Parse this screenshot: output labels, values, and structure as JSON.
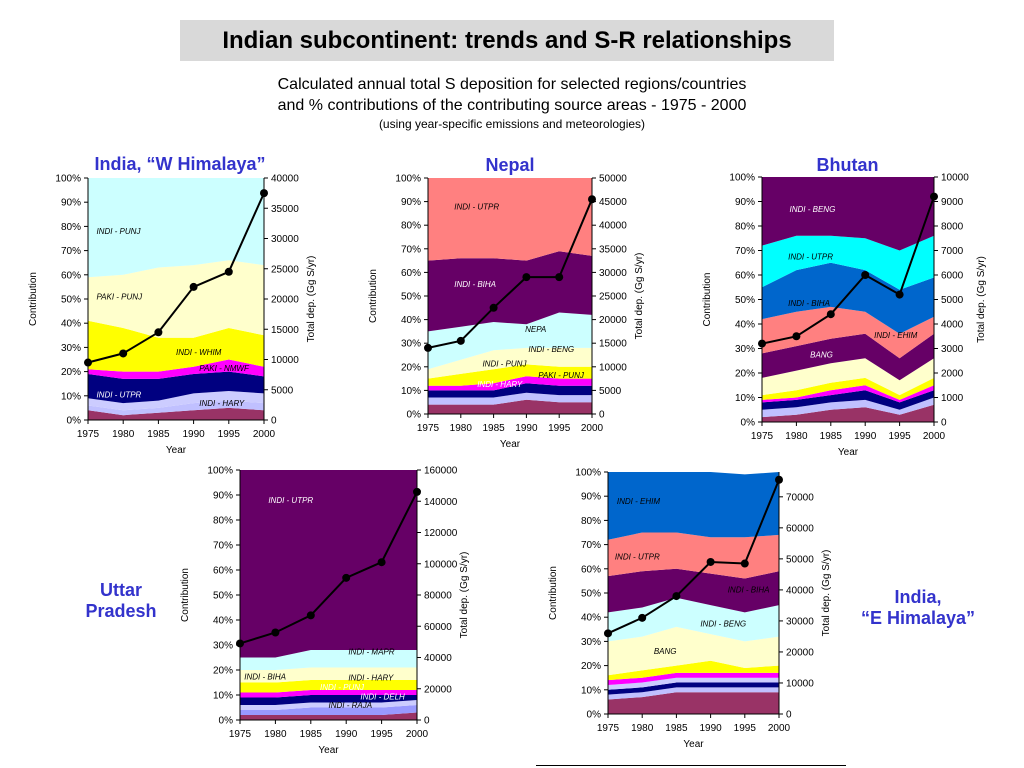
{
  "header": {
    "title": "Indian subcontinent: trends and S-R relationships",
    "subtitle_line1": "Calculated annual total S deposition for selected regions/countries",
    "subtitle_line2": "and % contributions of the contributing source areas - 1975 - 2000",
    "subtitle_line3": "(using year-specific emissions and meteorologies)"
  },
  "colors": {
    "region_title": "#3333cc",
    "line": "#000000"
  },
  "chart_data": [
    {
      "type": "area",
      "region_label": "India, “W Himalaya”",
      "xlabel": "Year",
      "ylabel_left": "Contribution",
      "ylabel_right": "Total dep. (Gg S/yr)",
      "x": [
        1975,
        1980,
        1985,
        1990,
        1995,
        2000
      ],
      "left_ticks": [
        "0%",
        "10%",
        "20%",
        "30%",
        "40%",
        "50%",
        "60%",
        "70%",
        "80%",
        "90%",
        "100%"
      ],
      "right_ticks": [
        "0",
        "5000",
        "10000",
        "15000",
        "20000",
        "25000",
        "30000",
        "35000",
        "40000"
      ],
      "right_max": 40000,
      "stacks": [
        {
          "color": "#993366",
          "values": [
            4,
            2,
            3,
            4,
            5,
            4
          ]
        },
        {
          "color": "#c0c0ff",
          "values": [
            2,
            2,
            2,
            3,
            3,
            3
          ]
        },
        {
          "color": "#ccccff",
          "values": [
            3,
            3,
            3,
            4,
            4,
            4
          ]
        },
        {
          "color": "#000080",
          "values": [
            10,
            10,
            9,
            8,
            8,
            7
          ]
        },
        {
          "color": "#ff00ff",
          "values": [
            2,
            3,
            3,
            3,
            5,
            4
          ]
        },
        {
          "color": "#ffff00",
          "values": [
            20,
            18,
            14,
            12,
            13,
            13
          ]
        },
        {
          "color": "#ffffcc",
          "values": [
            18,
            22,
            29,
            30,
            28,
            29
          ]
        },
        {
          "color": "#ccffff",
          "values": [
            41,
            40,
            37,
            36,
            34,
            36
          ]
        }
      ],
      "total": [
        9500,
        11000,
        14500,
        22000,
        24500,
        37500
      ],
      "area_labels": [
        {
          "text": "INDI - PUNJ",
          "x": 1976.2,
          "y": 78,
          "color": "#000000"
        },
        {
          "text": "PAKI - PUNJ",
          "x": 1976.2,
          "y": 51,
          "color": "#000000"
        },
        {
          "text": "INDI - WHIM",
          "x": 1987.5,
          "y": 28,
          "color": "#000000"
        },
        {
          "text": "PAKI - NMWF",
          "x": 1990.8,
          "y": 21.5,
          "color": "#000000"
        },
        {
          "text": "INDI - UTPR",
          "x": 1976.2,
          "y": 10.5,
          "color": "#ffffff"
        },
        {
          "text": "INDI - HARY",
          "x": 1990.8,
          "y": 7,
          "color": "#000000"
        }
      ]
    },
    {
      "type": "area",
      "region_label": "Nepal",
      "xlabel": "Year",
      "ylabel_left": "Contribution",
      "ylabel_right": "Total dep. (Gg S/yr)",
      "x": [
        1975,
        1980,
        1985,
        1990,
        1995,
        2000
      ],
      "left_ticks": [
        "0%",
        "10%",
        "20%",
        "30%",
        "40%",
        "50%",
        "60%",
        "70%",
        "80%",
        "90%",
        "100%"
      ],
      "right_ticks": [
        "0",
        "5000",
        "10000",
        "15000",
        "20000",
        "25000",
        "30000",
        "35000",
        "40000",
        "45000",
        "50000"
      ],
      "right_max": 50000,
      "stacks": [
        {
          "color": "#993366",
          "values": [
            4,
            4,
            4,
            6,
            5,
            5
          ]
        },
        {
          "color": "#c0c0ff",
          "values": [
            3,
            3,
            3,
            3,
            3,
            3
          ]
        },
        {
          "color": "#000080",
          "values": [
            3,
            3,
            3,
            4,
            4,
            4
          ]
        },
        {
          "color": "#ff00ff",
          "values": [
            2,
            2,
            3,
            3,
            3,
            3
          ]
        },
        {
          "color": "#ffff00",
          "values": [
            3,
            5,
            6,
            5,
            5,
            5
          ]
        },
        {
          "color": "#ffffcc",
          "values": [
            4,
            6,
            8,
            7,
            8,
            8
          ]
        },
        {
          "color": "#ccffff",
          "values": [
            16,
            14,
            12,
            10,
            15,
            14
          ]
        },
        {
          "color": "#660066",
          "values": [
            30,
            29,
            27,
            27,
            26,
            25
          ]
        },
        {
          "color": "#ff8080",
          "values": [
            35,
            34,
            34,
            35,
            31,
            33
          ]
        }
      ],
      "total": [
        14000,
        15500,
        22500,
        29000,
        29000,
        45500
      ],
      "area_labels": [
        {
          "text": "INDI - UTPR",
          "x": 1979,
          "y": 88,
          "color": "#000000"
        },
        {
          "text": "INDI - BIHA",
          "x": 1979,
          "y": 55,
          "color": "#ffffff"
        },
        {
          "text": "NEPA",
          "x": 1989.8,
          "y": 36,
          "color": "#000000"
        },
        {
          "text": "INDI - BENG",
          "x": 1990.3,
          "y": 27.5,
          "color": "#000000"
        },
        {
          "text": "INDI - PUNJ",
          "x": 1983.3,
          "y": 21.3,
          "color": "#000000"
        },
        {
          "text": "PAKI - PUNJ",
          "x": 1991.8,
          "y": 16.5,
          "color": "#000000"
        },
        {
          "text": "INDI - HARY",
          "x": 1982.5,
          "y": 12.8,
          "color": "#ffffff"
        }
      ]
    },
    {
      "type": "area",
      "region_label": "Bhutan",
      "xlabel": "Year",
      "ylabel_left": "Contribution",
      "ylabel_right": "Total dep. (Gg S/yr)",
      "x": [
        1975,
        1980,
        1985,
        1990,
        1995,
        2000
      ],
      "left_ticks": [
        "0%",
        "10%",
        "20%",
        "30%",
        "40%",
        "50%",
        "60%",
        "70%",
        "80%",
        "90%",
        "100%"
      ],
      "right_ticks": [
        "0",
        "1000",
        "2000",
        "3000",
        "4000",
        "5000",
        "6000",
        "7000",
        "8000",
        "9000",
        "10000"
      ],
      "right_max": 10000,
      "stacks": [
        {
          "color": "#993366",
          "values": [
            2,
            3,
            5,
            6,
            3,
            7
          ]
        },
        {
          "color": "#c0c0ff",
          "values": [
            3,
            3,
            3,
            3,
            2,
            3
          ]
        },
        {
          "color": "#000080",
          "values": [
            3,
            3,
            3,
            4,
            3,
            3
          ]
        },
        {
          "color": "#ff00ff",
          "values": [
            1,
            1,
            2,
            2,
            1,
            2
          ]
        },
        {
          "color": "#ffff00",
          "values": [
            2,
            3,
            3,
            3,
            2,
            3
          ]
        },
        {
          "color": "#ffffcc",
          "values": [
            7,
            8,
            8,
            8,
            6,
            8
          ]
        },
        {
          "color": "#660066",
          "values": [
            10,
            10,
            10,
            10,
            9,
            10
          ]
        },
        {
          "color": "#ff8080",
          "values": [
            14,
            14,
            13,
            9,
            10,
            7
          ]
        },
        {
          "color": "#0066cc",
          "values": [
            13,
            17,
            18,
            17,
            18,
            16
          ]
        },
        {
          "color": "#00ffff",
          "values": [
            17,
            14,
            11,
            13,
            16,
            17
          ]
        },
        {
          "color": "#660066",
          "values": [
            28,
            24,
            24,
            25,
            30,
            24
          ]
        }
      ],
      "total": [
        3200,
        3500,
        4400,
        6000,
        5200,
        9200
      ],
      "area_labels": [
        {
          "text": "INDI - BENG",
          "x": 1979,
          "y": 87,
          "color": "#ffffff"
        },
        {
          "text": "INDI - UTPR",
          "x": 1978.8,
          "y": 67.5,
          "color": "#000000"
        },
        {
          "text": "INDI - BIHA",
          "x": 1978.8,
          "y": 48.5,
          "color": "#000000"
        },
        {
          "text": "INDI - EHIM",
          "x": 1991.3,
          "y": 35.5,
          "color": "#000000"
        },
        {
          "text": "BANG",
          "x": 1982,
          "y": 27.5,
          "color": "#ffffff"
        }
      ]
    },
    {
      "type": "area",
      "region_label": "Uttar Pradesh",
      "region_label_line1": "Uttar",
      "region_label_line2": "Pradesh",
      "xlabel": "Year",
      "ylabel_left": "Contribution",
      "ylabel_right": "Total dep. (Gg S/yr)",
      "x": [
        1975,
        1980,
        1985,
        1990,
        1995,
        2000
      ],
      "left_ticks": [
        "0%",
        "10%",
        "20%",
        "30%",
        "40%",
        "50%",
        "60%",
        "70%",
        "80%",
        "90%",
        "100%"
      ],
      "right_ticks": [
        "0",
        "20000",
        "40000",
        "60000",
        "80000",
        "100000",
        "120000",
        "140000",
        "160000"
      ],
      "right_max": 160000,
      "stacks": [
        {
          "color": "#993366",
          "values": [
            2,
            2,
            2,
            2,
            2,
            3
          ]
        },
        {
          "color": "#9999ff",
          "values": [
            2,
            2,
            3,
            3,
            3,
            3
          ]
        },
        {
          "color": "#ccccff",
          "values": [
            2,
            2,
            2,
            2,
            2,
            2
          ]
        },
        {
          "color": "#000080",
          "values": [
            3,
            3,
            3,
            3,
            3,
            2
          ]
        },
        {
          "color": "#ff00ff",
          "values": [
            2,
            2,
            2,
            2,
            2,
            2
          ]
        },
        {
          "color": "#ffff00",
          "values": [
            4,
            4,
            4,
            4,
            4,
            4
          ]
        },
        {
          "color": "#ffffcc",
          "values": [
            5,
            5,
            5,
            5,
            5,
            5
          ]
        },
        {
          "color": "#ccffff",
          "values": [
            5,
            5,
            7,
            7,
            7,
            7
          ]
        },
        {
          "color": "#660066",
          "values": [
            75,
            75,
            72,
            72,
            72,
            72
          ]
        }
      ],
      "total": [
        49000,
        56000,
        67000,
        91000,
        101000,
        146000
      ],
      "area_labels": [
        {
          "text": "INDI - UTPR",
          "x": 1979,
          "y": 88,
          "color": "#ffffff"
        },
        {
          "text": "INDI - MAPR",
          "x": 1990.3,
          "y": 27.5,
          "color": "#000000"
        },
        {
          "text": "INDI - BIHA",
          "x": 1975.6,
          "y": 17.5,
          "color": "#000000"
        },
        {
          "text": "INDI - HARY",
          "x": 1990.3,
          "y": 17,
          "color": "#000000"
        },
        {
          "text": "INDI - PUNJ",
          "x": 1986.3,
          "y": 13.3,
          "color": "#ffffff"
        },
        {
          "text": "INDI - DELH",
          "x": 1992,
          "y": 9.5,
          "color": "#ffffff"
        },
        {
          "text": "INDI - RAJA",
          "x": 1987.5,
          "y": 6,
          "color": "#000000"
        }
      ]
    },
    {
      "type": "area",
      "region_label": "India, “E Himalaya”",
      "region_label_line1": "India,",
      "region_label_line2": "“E Himalaya”",
      "xlabel": "Year",
      "ylabel_left": "Contribution",
      "ylabel_right": "Total dep. (Gg S/yr)",
      "x": [
        1975,
        1980,
        1985,
        1990,
        1995,
        2000
      ],
      "left_ticks": [
        "0%",
        "10%",
        "20%",
        "30%",
        "40%",
        "50%",
        "60%",
        "70%",
        "80%",
        "90%",
        "100%"
      ],
      "right_ticks": [
        "0",
        "10000",
        "20000",
        "30000",
        "40000",
        "50000",
        "60000",
        "70000"
      ],
      "right_max": 78000,
      "stacks": [
        {
          "color": "#993366",
          "values": [
            6,
            7,
            9,
            9,
            9,
            9
          ]
        },
        {
          "color": "#c0c0ff",
          "values": [
            2,
            2,
            2,
            2,
            2,
            2
          ]
        },
        {
          "color": "#000080",
          "values": [
            2,
            2,
            2,
            2,
            2,
            2
          ]
        },
        {
          "color": "#ccccff",
          "values": [
            2,
            2,
            2,
            2,
            2,
            2
          ]
        },
        {
          "color": "#ff00ff",
          "values": [
            2,
            2,
            2,
            2,
            2,
            2
          ]
        },
        {
          "color": "#ffff00",
          "values": [
            2,
            3,
            3,
            5,
            2,
            3
          ]
        },
        {
          "color": "#ffffcc",
          "values": [
            14,
            14,
            16,
            11,
            11,
            12
          ]
        },
        {
          "color": "#ccffff",
          "values": [
            12,
            12,
            12,
            12,
            12,
            13
          ]
        },
        {
          "color": "#660066",
          "values": [
            15,
            15,
            12,
            13,
            14,
            14
          ]
        },
        {
          "color": "#ff8080",
          "values": [
            15,
            16,
            15,
            15,
            17,
            15
          ]
        },
        {
          "color": "#0066cc",
          "values": [
            28,
            25,
            25,
            27,
            26,
            26
          ]
        }
      ],
      "total": [
        26000,
        31000,
        38000,
        49000,
        48500,
        75500
      ],
      "area_labels": [
        {
          "text": "INDI - EHIM",
          "x": 1976.3,
          "y": 88,
          "color": "#000000"
        },
        {
          "text": "INDI - UTPR",
          "x": 1976,
          "y": 65,
          "color": "#000000"
        },
        {
          "text": "INDI - BIHA",
          "x": 1992.5,
          "y": 51.5,
          "color": "#000000"
        },
        {
          "text": "INDI - BENG",
          "x": 1988.5,
          "y": 37.5,
          "color": "#000000"
        },
        {
          "text": "BANG",
          "x": 1981.7,
          "y": 26,
          "color": "#000000"
        }
      ]
    }
  ]
}
